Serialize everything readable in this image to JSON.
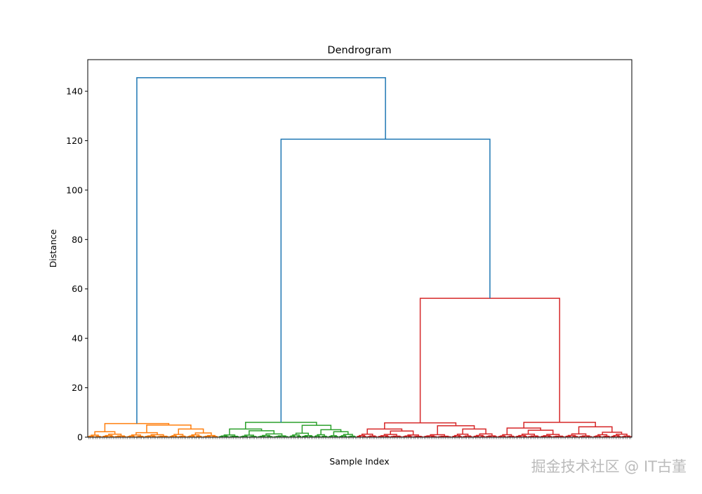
{
  "chart_data": {
    "type": "dendrogram",
    "title": "Dendrogram",
    "xlabel": "Sample Index",
    "ylabel": "Distance",
    "ylim": [
      0,
      152.8
    ],
    "yticks": [
      0,
      20,
      40,
      60,
      80,
      100,
      120,
      140
    ],
    "grid": false,
    "colors": {
      "above_threshold": "#1f77b4",
      "cluster_1": "#ff7f0e",
      "cluster_2": "#2ca02c",
      "cluster_3": "#d62728"
    },
    "tree": {
      "h": 145.5,
      "color": "above_threshold",
      "children": [
        {
          "h": 5.5,
          "color": "cluster_1",
          "children": [
            {
              "h": 2.2,
              "children": [
                {
                  "n": 8,
                  "h": 0.8
                },
                {
                  "n": 14,
                  "h": 1.2
                }
              ]
            },
            {
              "h": 4.9,
              "children": [
                {
                  "h": 1.8,
                  "children": [
                    {
                      "n": 10,
                      "h": 0.9
                    },
                    {
                      "n": 14,
                      "h": 1.0
                    }
                  ]
                },
                {
                  "h": 3.3,
                  "children": [
                    {
                      "n": 10,
                      "h": 1.1
                    },
                    {
                      "n": 18,
                      "h": 1.7
                    }
                  ]
                }
              ]
            }
          ]
        },
        {
          "h": 120.6,
          "color": "above_threshold",
          "children": [
            {
              "h": 6.0,
              "color": "cluster_2",
              "children": [
                {
                  "h": 3.3,
                  "children": [
                    {
                      "n": 12,
                      "h": 0.9
                    },
                    {
                      "h": 2.6,
                      "children": [
                        {
                          "n": 10,
                          "h": 0.8
                        },
                        {
                          "n": 18,
                          "h": 1.3
                        }
                      ]
                    }
                  ]
                },
                {
                  "h": 4.8,
                  "children": [
                    {
                      "n": 14,
                      "h": 1.6
                    },
                    {
                      "h": 3.0,
                      "children": [
                        {
                          "n": 8,
                          "h": 1.0
                        },
                        {
                          "h": 2.2,
                          "children": [
                            {
                              "n": 6,
                              "h": 0.6
                            },
                            {
                              "n": 10,
                              "h": 1.1
                            }
                          ]
                        }
                      ]
                    }
                  ]
                }
              ]
            },
            {
              "h": 56.2,
              "color": "cluster_3",
              "children": [
                {
                  "h": 5.8,
                  "children": [
                    {
                      "h": 3.3,
                      "children": [
                        {
                          "n": 12,
                          "h": 1.2
                        },
                        {
                          "h": 2.5,
                          "children": [
                            {
                              "n": 14,
                              "h": 1.1
                            },
                            {
                              "n": 12,
                              "h": 0.9
                            }
                          ]
                        }
                      ]
                    },
                    {
                      "h": 4.6,
                      "children": [
                        {
                          "n": 16,
                          "h": 1.0
                        },
                        {
                          "h": 3.3,
                          "children": [
                            {
                              "n": 12,
                              "h": 1.2
                            },
                            {
                              "n": 14,
                              "h": 1.3
                            }
                          ]
                        }
                      ]
                    }
                  ]
                },
                {
                  "h": 6.0,
                  "children": [
                    {
                      "h": 3.7,
                      "children": [
                        {
                          "n": 10,
                          "h": 1.0
                        },
                        {
                          "h": 2.8,
                          "children": [
                            {
                              "n": 14,
                              "h": 1.2
                            },
                            {
                              "n": 14,
                              "h": 1.1
                            }
                          ]
                        }
                      ]
                    },
                    {
                      "h": 4.2,
                      "children": [
                        {
                          "n": 16,
                          "h": 1.3
                        },
                        {
                          "h": 2.0,
                          "children": [
                            {
                              "n": 10,
                              "h": 1.0
                            },
                            {
                              "n": 12,
                              "h": 1.2
                            }
                          ]
                        }
                      ]
                    }
                  ]
                }
              ]
            }
          ]
        }
      ]
    }
  },
  "watermark": "掘金技术社区 @ IT古董"
}
